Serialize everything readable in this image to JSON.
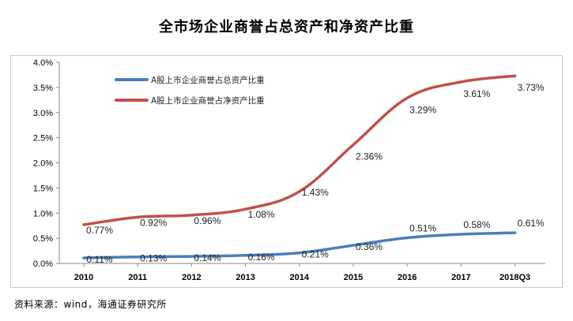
{
  "title": "全市场企业商誉占总资产和净资产比重",
  "source": "资料来源：wind，海通证券研究所",
  "chart_data": {
    "type": "line",
    "title": "全市场企业商誉占总资产和净资产比重",
    "x": [
      "2010",
      "2011",
      "2012",
      "2013",
      "2014",
      "2015",
      "2016",
      "2017",
      "2018Q3"
    ],
    "yticks": [
      "0.0%",
      "0.5%",
      "1.0%",
      "1.5%",
      "2.0%",
      "2.5%",
      "3.0%",
      "3.5%",
      "4.0%"
    ],
    "ylim": [
      0,
      4.0
    ],
    "grid": false,
    "legend_position": "top-left",
    "series": [
      {
        "name": "A股上市企业商誉占总资产比重",
        "color": "#4a7ebb",
        "values": [
          0.11,
          0.13,
          0.14,
          0.16,
          0.21,
          0.36,
          0.51,
          0.58,
          0.61
        ],
        "labels": [
          "0.11%",
          "0.13%",
          "0.14%",
          "0.16%",
          "0.21%",
          "0.36%",
          "0.51%",
          "0.58%",
          "0.61%"
        ]
      },
      {
        "name": "A股上市企业商誉占净资产比重",
        "color": "#c0504d",
        "values": [
          0.77,
          0.92,
          0.96,
          1.08,
          1.43,
          2.36,
          3.29,
          3.61,
          3.73
        ],
        "labels": [
          "0.77%",
          "0.92%",
          "0.96%",
          "1.08%",
          "1.43%",
          "2.36%",
          "3.29%",
          "3.61%",
          "3.73%"
        ]
      }
    ]
  }
}
